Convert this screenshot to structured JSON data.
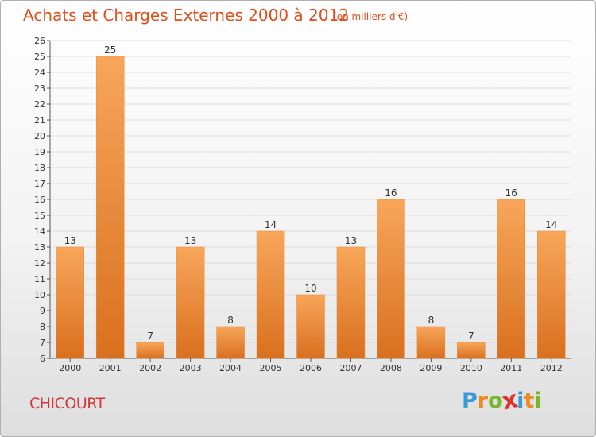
{
  "title": "Achats et Charges Externes 2000 à 2012",
  "subtitle": "(en milliers d'€)",
  "commune": "CHICOURT",
  "brand": {
    "letters": [
      "P",
      "r",
      "o",
      "x",
      "i",
      "t",
      "i"
    ],
    "colors": [
      "#3a9ad9",
      "#f08a1c",
      "#78b72a",
      "#e0322c",
      "#3a9ad9",
      "#f08a1c",
      "#78b72a"
    ]
  },
  "colors": {
    "bar_light": "#f8a65a",
    "bar_dark": "#d9701f",
    "title": "#e04e1c"
  },
  "chart_data": {
    "type": "bar",
    "categories": [
      "2000",
      "2001",
      "2002",
      "2003",
      "2004",
      "2005",
      "2006",
      "2007",
      "2008",
      "2009",
      "2010",
      "2011",
      "2012"
    ],
    "values": [
      13,
      25,
      7,
      13,
      8,
      14,
      10,
      13,
      16,
      8,
      7,
      16,
      14
    ],
    "ylim": [
      6,
      26
    ],
    "yticks": [
      6,
      7,
      8,
      9,
      10,
      11,
      12,
      13,
      14,
      15,
      16,
      17,
      18,
      19,
      20,
      21,
      22,
      23,
      24,
      25,
      26
    ],
    "grid": true,
    "data_labels": true
  }
}
